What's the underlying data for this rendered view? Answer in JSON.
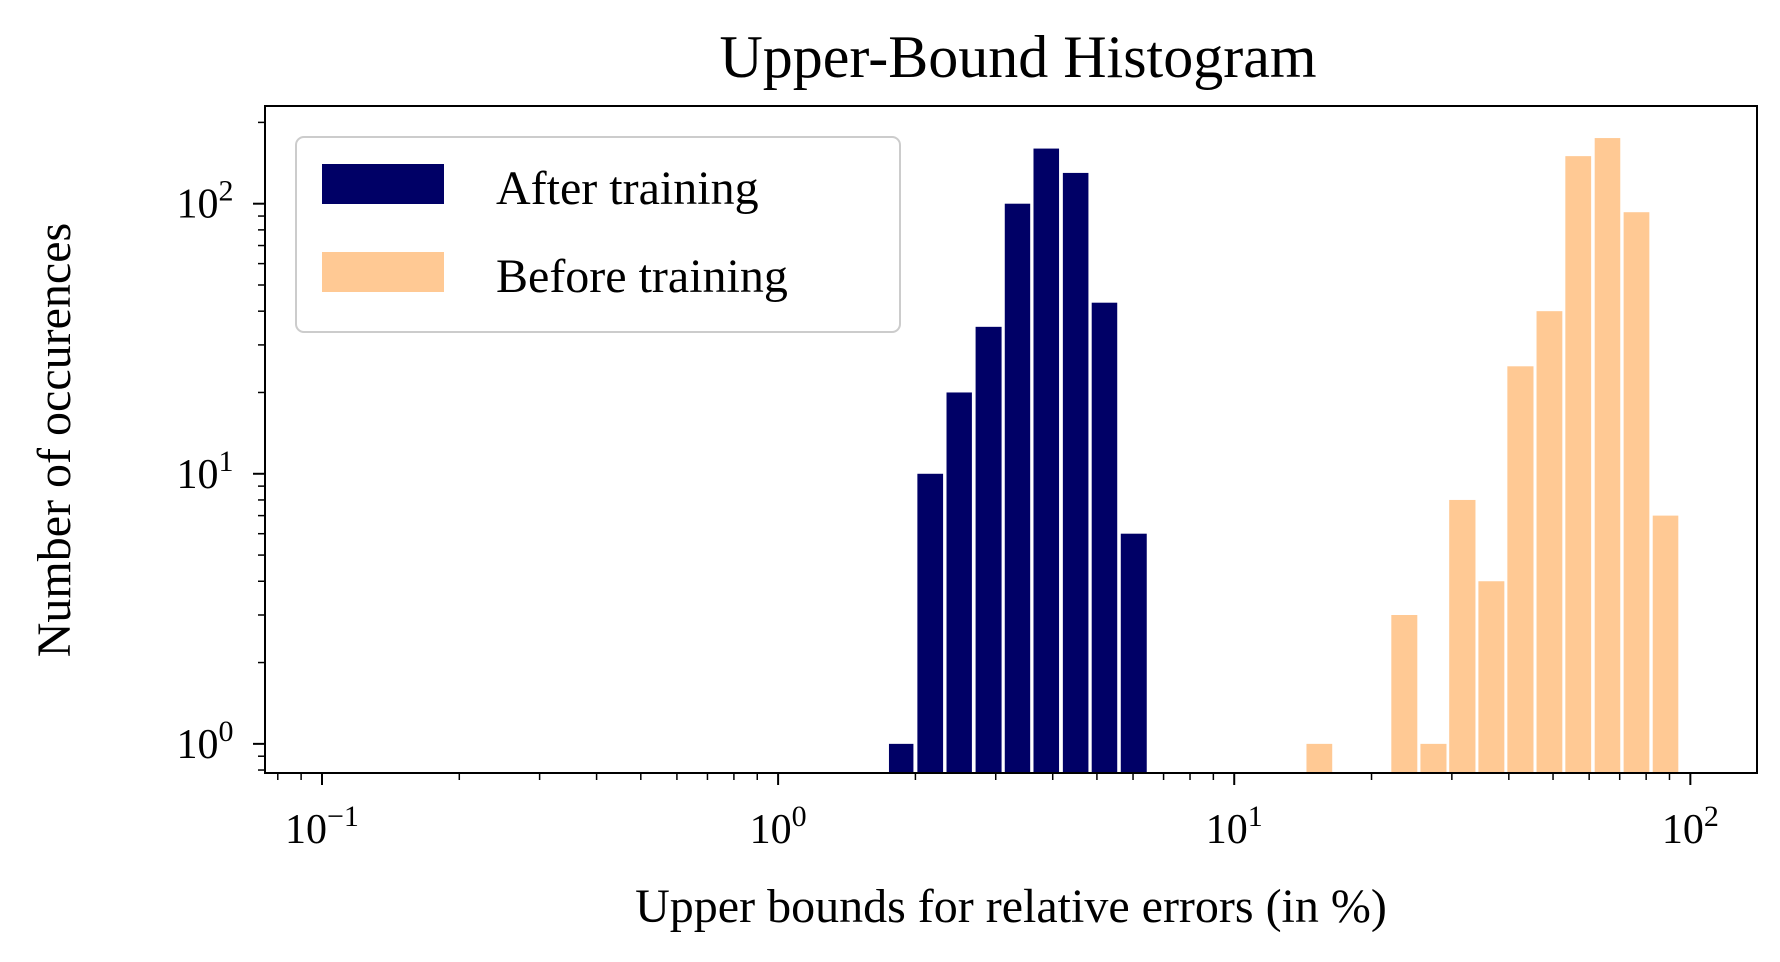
{
  "chart_data": {
    "type": "bar",
    "title": "Upper-Bound Histogram",
    "xlabel": "Upper bounds for relative errors (in %)",
    "ylabel": "Number of occurences",
    "x_scale": "log",
    "y_scale": "log",
    "xlim": [
      0.075,
      140
    ],
    "ylim": [
      0.78,
      230
    ],
    "x_ticks": [
      {
        "value": 0.1,
        "base": "10",
        "exp": "−1"
      },
      {
        "value": 1,
        "base": "10",
        "exp": "0"
      },
      {
        "value": 10,
        "base": "10",
        "exp": "1"
      },
      {
        "value": 100,
        "base": "10",
        "exp": "2"
      }
    ],
    "y_ticks": [
      {
        "value": 1,
        "base": "10",
        "exp": "0"
      },
      {
        "value": 10,
        "base": "10",
        "exp": "1"
      },
      {
        "value": 100,
        "base": "10",
        "exp": "2"
      }
    ],
    "grid": false,
    "legend_position": "top-left",
    "series": [
      {
        "name": "After training",
        "color": "#000066",
        "bins": [
          {
            "x0": 1.75,
            "x1": 1.98,
            "count": 1
          },
          {
            "x0": 2.02,
            "x1": 2.3,
            "count": 10
          },
          {
            "x0": 2.34,
            "x1": 2.66,
            "count": 20
          },
          {
            "x0": 2.71,
            "x1": 3.09,
            "count": 35
          },
          {
            "x0": 3.14,
            "x1": 3.57,
            "count": 100
          },
          {
            "x0": 3.63,
            "x1": 4.13,
            "count": 160
          },
          {
            "x0": 4.21,
            "x1": 4.79,
            "count": 130
          },
          {
            "x0": 4.87,
            "x1": 5.54,
            "count": 43
          },
          {
            "x0": 5.64,
            "x1": 6.43,
            "count": 6
          }
        ]
      },
      {
        "name": "Before training",
        "color": "#ffc994",
        "bins": [
          {
            "x0": 14.4,
            "x1": 16.4,
            "count": 1
          },
          {
            "x0": 22.1,
            "x1": 25.2,
            "count": 3
          },
          {
            "x0": 25.6,
            "x1": 29.2,
            "count": 1
          },
          {
            "x0": 29.6,
            "x1": 33.8,
            "count": 8
          },
          {
            "x0": 34.3,
            "x1": 39.1,
            "count": 4
          },
          {
            "x0": 39.7,
            "x1": 45.3,
            "count": 25
          },
          {
            "x0": 46.0,
            "x1": 52.4,
            "count": 40
          },
          {
            "x0": 53.2,
            "x1": 60.6,
            "count": 150
          },
          {
            "x0": 61.7,
            "x1": 70.2,
            "count": 175
          },
          {
            "x0": 71.4,
            "x1": 81.3,
            "count": 93
          },
          {
            "x0": 82.7,
            "x1": 94.1,
            "count": 7
          }
        ]
      }
    ]
  }
}
